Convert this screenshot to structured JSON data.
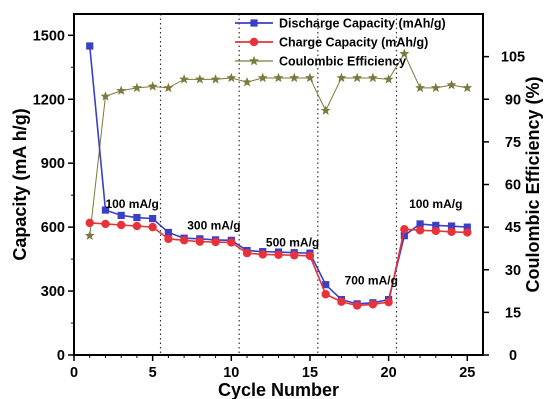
{
  "chart_data": {
    "type": "line",
    "xlabel": "Cycle Number",
    "ylabel_left": "Capacity (mA h/g)",
    "ylabel_right": "Coulombic Efficiency (%)",
    "xlim": [
      0,
      26
    ],
    "ylim_left": [
      0,
      1600
    ],
    "ylim_right": [
      0,
      120
    ],
    "xticks": [
      0,
      5,
      10,
      15,
      20,
      25
    ],
    "yticks_left": [
      0,
      300,
      600,
      900,
      1200,
      1500
    ],
    "yticks_right": [
      0,
      15,
      30,
      45,
      60,
      75,
      90,
      105
    ],
    "grid": false,
    "legend_position": "top-right",
    "dividers_x": [
      5.5,
      10.5,
      15.5,
      20.5
    ],
    "annotations": [
      {
        "text": "100 mA/g",
        "x": 2.0,
        "y": 690
      },
      {
        "text": "300 mA/g",
        "x": 7.2,
        "y": 590
      },
      {
        "text": "500 mA/g",
        "x": 12.2,
        "y": 510
      },
      {
        "text": "700 mA/g",
        "x": 17.2,
        "y": 330
      },
      {
        "text": "100 mA/g",
        "x": 21.3,
        "y": 690
      }
    ],
    "x": [
      1,
      2,
      3,
      4,
      5,
      6,
      7,
      8,
      9,
      10,
      11,
      12,
      13,
      14,
      15,
      16,
      17,
      18,
      19,
      20,
      21,
      22,
      23,
      24,
      25
    ],
    "series": [
      {
        "name": "Discharge Capacity (mAh/g)",
        "axis": "left",
        "color": "#3a3fc4",
        "marker": "square",
        "values": [
          1450,
          680,
          655,
          645,
          640,
          575,
          548,
          545,
          540,
          538,
          490,
          485,
          483,
          480,
          478,
          330,
          260,
          240,
          245,
          260,
          560,
          615,
          608,
          605,
          600
        ]
      },
      {
        "name": "Charge Capacity (mAh/g)",
        "axis": "left",
        "color": "#e8323a",
        "marker": "circle",
        "values": [
          620,
          615,
          610,
          605,
          600,
          545,
          538,
          532,
          530,
          528,
          478,
          472,
          470,
          468,
          465,
          285,
          250,
          232,
          238,
          248,
          590,
          585,
          582,
          578,
          575
        ]
      },
      {
        "name": "Coulombic Efficiency",
        "axis": "right",
        "color": "#7a7a3c",
        "marker": "star",
        "values": [
          42,
          91,
          93,
          94,
          94.5,
          94,
          97,
          97,
          97,
          97.5,
          96,
          97.5,
          97.5,
          97.5,
          97.5,
          86,
          97.5,
          97.5,
          97.5,
          97,
          106,
          94,
          94,
          95,
          94
        ]
      }
    ]
  }
}
